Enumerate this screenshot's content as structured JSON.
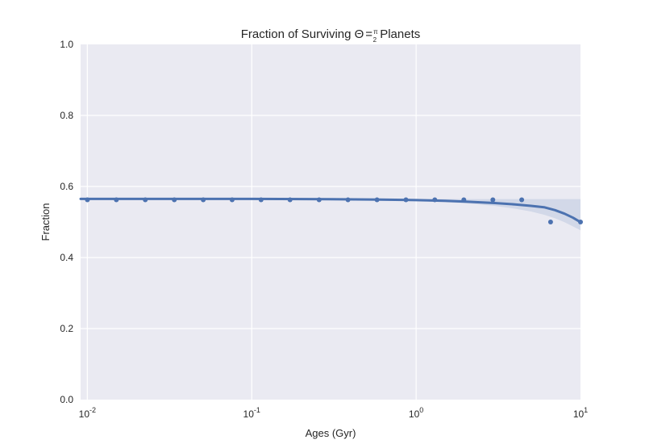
{
  "chart_data": {
    "type": "scatter",
    "title": {
      "prefix": "Fraction of Surviving ",
      "theta": "Θ",
      "eq": "=",
      "frac_num": "π",
      "frac_den": "2",
      "suffix": " Planets"
    },
    "xlabel": "Ages (Gyr)",
    "ylabel": "Fraction",
    "x_scale": "log",
    "xlim": [
      0.0091,
      10
    ],
    "ylim": [
      0.0,
      1.0
    ],
    "x_ticks": [
      {
        "value": 0.01,
        "base": "10",
        "exp": "-2"
      },
      {
        "value": 0.1,
        "base": "10",
        "exp": "-1"
      },
      {
        "value": 1,
        "base": "10",
        "exp": "0"
      },
      {
        "value": 10,
        "base": "10",
        "exp": "1"
      }
    ],
    "y_ticks": [
      {
        "value": 0.0,
        "label": "0.0"
      },
      {
        "value": 0.2,
        "label": "0.2"
      },
      {
        "value": 0.4,
        "label": "0.4"
      },
      {
        "value": 0.6,
        "label": "0.6"
      },
      {
        "value": 0.8,
        "label": "0.8"
      },
      {
        "value": 1.0,
        "label": "1.0"
      }
    ],
    "grid": true,
    "series": [
      {
        "color": "#4c72b0",
        "points": [
          {
            "x": 0.01,
            "y": 0.5625
          },
          {
            "x": 0.015,
            "y": 0.5625
          },
          {
            "x": 0.0225,
            "y": 0.5625
          },
          {
            "x": 0.0338,
            "y": 0.5625
          },
          {
            "x": 0.0507,
            "y": 0.5625
          },
          {
            "x": 0.076,
            "y": 0.5625
          },
          {
            "x": 0.114,
            "y": 0.5625
          },
          {
            "x": 0.171,
            "y": 0.5625
          },
          {
            "x": 0.257,
            "y": 0.5625
          },
          {
            "x": 0.385,
            "y": 0.5625
          },
          {
            "x": 0.578,
            "y": 0.5625
          },
          {
            "x": 0.867,
            "y": 0.5625
          },
          {
            "x": 1.3,
            "y": 0.5625
          },
          {
            "x": 1.95,
            "y": 0.5625
          },
          {
            "x": 2.93,
            "y": 0.5625
          },
          {
            "x": 4.39,
            "y": 0.5625
          },
          {
            "x": 6.58,
            "y": 0.5
          },
          {
            "x": 10.0,
            "y": 0.5
          }
        ],
        "fit": [
          {
            "x": 0.0091,
            "y": 0.5651
          },
          {
            "x": 0.1,
            "y": 0.5649
          },
          {
            "x": 0.3,
            "y": 0.5642
          },
          {
            "x": 0.6,
            "y": 0.5631
          },
          {
            "x": 1.0,
            "y": 0.5615
          },
          {
            "x": 1.5,
            "y": 0.5595
          },
          {
            "x": 2.0,
            "y": 0.5575
          },
          {
            "x": 3.0,
            "y": 0.5535
          },
          {
            "x": 4.0,
            "y": 0.5495
          },
          {
            "x": 5.0,
            "y": 0.5455
          },
          {
            "x": 6.0,
            "y": 0.5415
          },
          {
            "x": 7.0,
            "y": 0.5335
          },
          {
            "x": 8.0,
            "y": 0.5235
          },
          {
            "x": 9.0,
            "y": 0.512
          },
          {
            "x": 10.0,
            "y": 0.4995
          }
        ],
        "band": [
          {
            "x": 0.0091,
            "lo": 0.5635,
            "hi": 0.5668
          },
          {
            "x": 0.1,
            "lo": 0.5634,
            "hi": 0.5665
          },
          {
            "x": 0.6,
            "lo": 0.5615,
            "hi": 0.5655
          },
          {
            "x": 1.0,
            "lo": 0.5595,
            "hi": 0.565
          },
          {
            "x": 2.0,
            "lo": 0.5525,
            "hi": 0.5645
          },
          {
            "x": 3.0,
            "lo": 0.5455,
            "hi": 0.5645
          },
          {
            "x": 4.0,
            "lo": 0.5375,
            "hi": 0.5645
          },
          {
            "x": 5.0,
            "lo": 0.5295,
            "hi": 0.5645
          },
          {
            "x": 6.0,
            "lo": 0.5205,
            "hi": 0.5645
          },
          {
            "x": 7.0,
            "lo": 0.5105,
            "hi": 0.5645
          },
          {
            "x": 8.0,
            "lo": 0.4995,
            "hi": 0.5645
          },
          {
            "x": 9.0,
            "lo": 0.4875,
            "hi": 0.5645
          },
          {
            "x": 10.0,
            "lo": 0.4765,
            "hi": 0.5645
          }
        ]
      }
    ],
    "colors": {
      "plot_bg": "#eaeaf2",
      "grid": "#ffffff",
      "band": "#4c72b0",
      "text": "#262626"
    }
  }
}
